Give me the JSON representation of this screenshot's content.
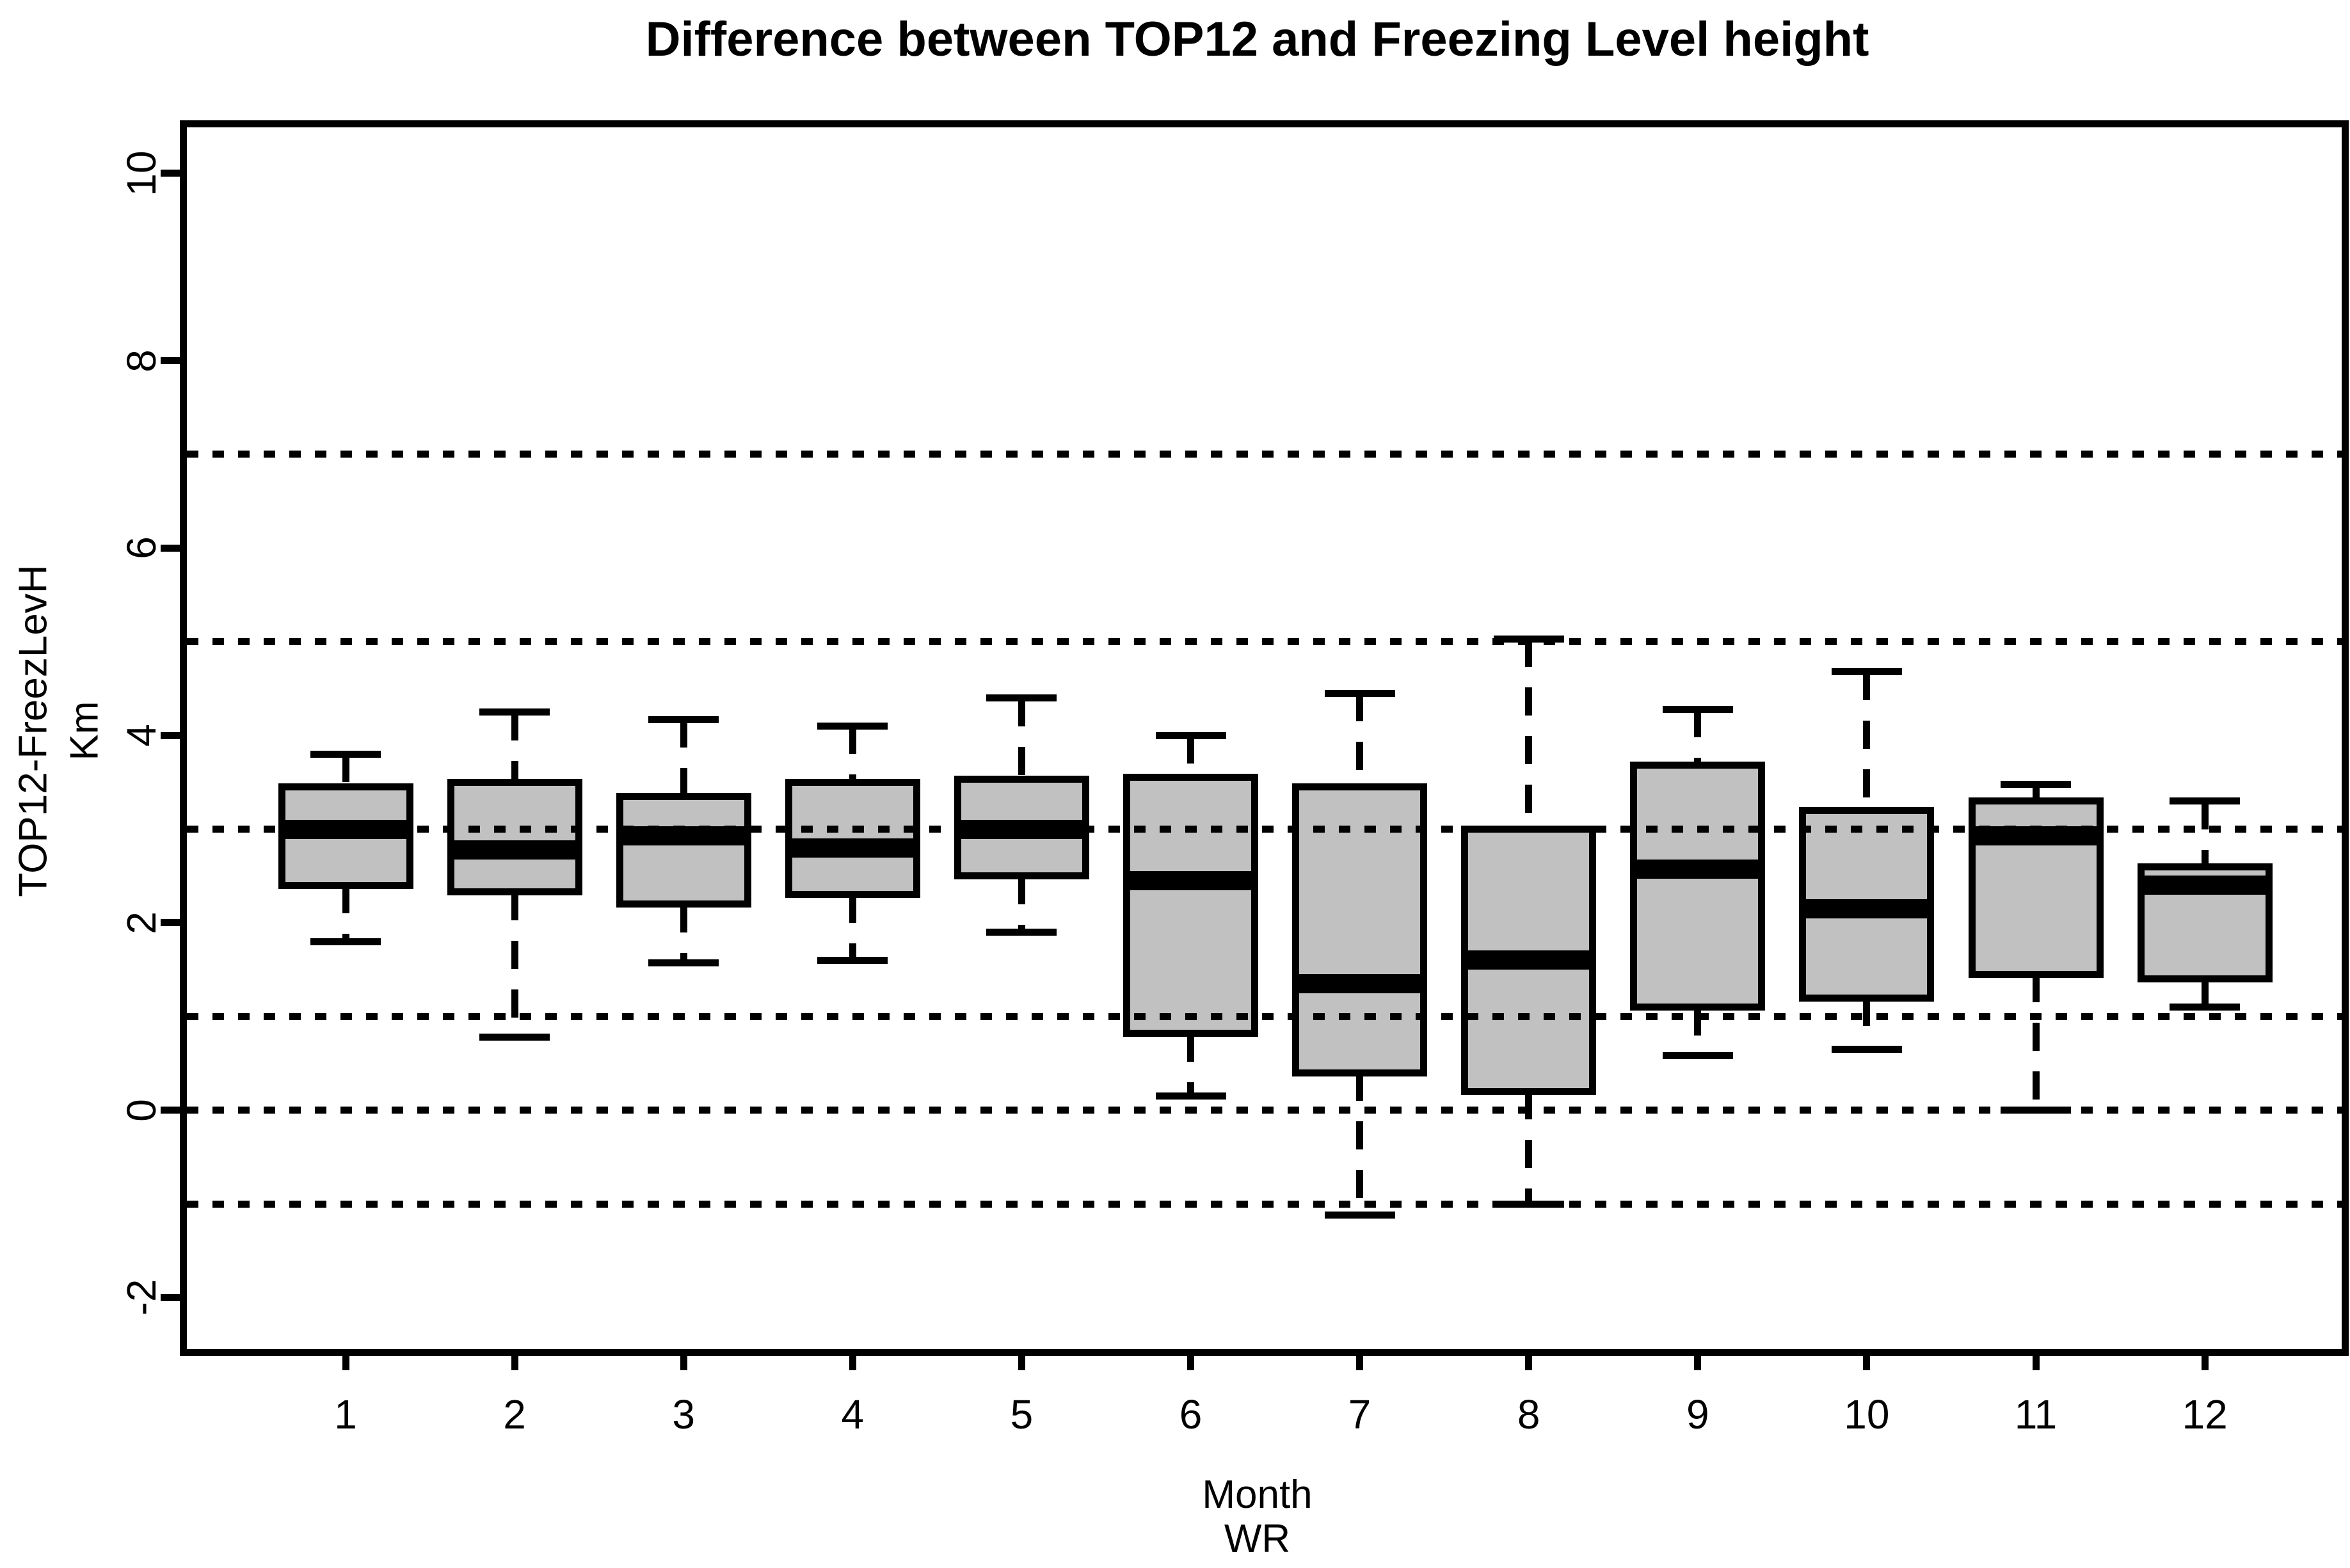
{
  "chart_data": {
    "type": "boxplot",
    "title": "Difference between TOP12 and Freezing Level height",
    "xlabel": "Month",
    "xlabel_sub": "WR",
    "ylabel_line1": "TOP12-FreezLevH",
    "ylabel_line2": "Km",
    "categories": [
      "1",
      "2",
      "3",
      "4",
      "5",
      "6",
      "7",
      "8",
      "9",
      "10",
      "11",
      "12"
    ],
    "boxes": [
      {
        "month": "1",
        "whisker_low": 1.8,
        "q1": 2.4,
        "median": 3.0,
        "q3": 3.45,
        "whisker_high": 3.8
      },
      {
        "month": "2",
        "whisker_low": 0.78,
        "q1": 2.33,
        "median": 2.78,
        "q3": 3.5,
        "whisker_high": 4.25
      },
      {
        "month": "3",
        "whisker_low": 1.57,
        "q1": 2.2,
        "median": 2.93,
        "q3": 3.35,
        "whisker_high": 4.17
      },
      {
        "month": "4",
        "whisker_low": 1.6,
        "q1": 2.3,
        "median": 2.8,
        "q3": 3.5,
        "whisker_high": 4.1
      },
      {
        "month": "5",
        "whisker_low": 1.9,
        "q1": 2.5,
        "median": 3.0,
        "q3": 3.53,
        "whisker_high": 4.4
      },
      {
        "month": "6",
        "whisker_low": 0.15,
        "q1": 0.82,
        "median": 2.45,
        "q3": 3.55,
        "whisker_high": 4.0
      },
      {
        "month": "7",
        "whisker_low": -1.12,
        "q1": 0.4,
        "median": 1.35,
        "q3": 3.45,
        "whisker_high": 4.45
      },
      {
        "month": "8",
        "whisker_low": -1.0,
        "q1": 0.2,
        "median": 1.6,
        "q3": 3.0,
        "whisker_high": 5.03
      },
      {
        "month": "9",
        "whisker_low": 0.58,
        "q1": 1.1,
        "median": 2.57,
        "q3": 3.68,
        "whisker_high": 4.28
      },
      {
        "month": "10",
        "whisker_low": 0.65,
        "q1": 1.2,
        "median": 2.15,
        "q3": 3.2,
        "whisker_high": 4.68
      },
      {
        "month": "11",
        "whisker_low": 0.0,
        "q1": 1.45,
        "median": 2.93,
        "q3": 3.3,
        "whisker_high": 3.48
      },
      {
        "month": "12",
        "whisker_low": 1.1,
        "q1": 1.4,
        "median": 2.4,
        "q3": 2.6,
        "whisker_high": 3.3
      }
    ],
    "y_ticks_major": [
      -2,
      0,
      2,
      4,
      6,
      8,
      10
    ],
    "gridlines_dotted_y": [
      -1,
      0,
      1,
      3,
      5,
      7
    ],
    "ylim": [
      -2.55,
      10.49
    ],
    "grid": "horizontal dotted",
    "legend": "none",
    "colors": {
      "box_fill": "#c1c1c1",
      "stroke": "#000000",
      "background": "#ffffff"
    }
  }
}
